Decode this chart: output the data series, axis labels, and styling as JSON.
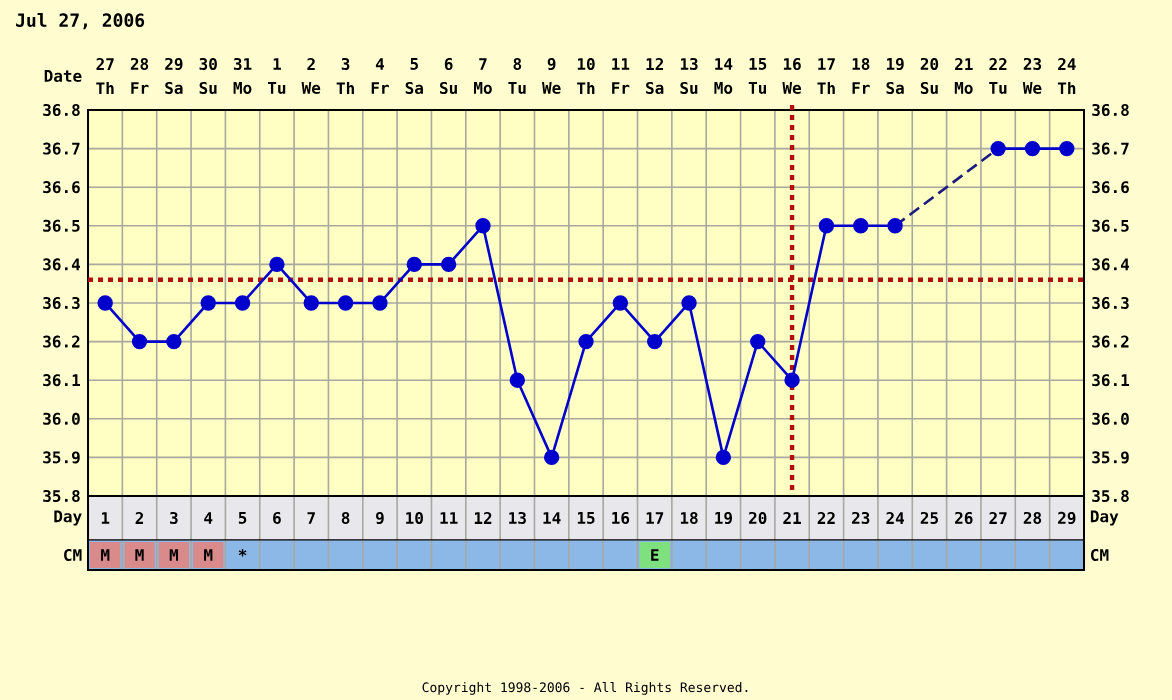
{
  "chart_data": {
    "type": "line",
    "title": "Jul 27, 2006",
    "categories": [
      "1",
      "2",
      "3",
      "4",
      "5",
      "6",
      "7",
      "8",
      "9",
      "10",
      "11",
      "12",
      "13",
      "14",
      "15",
      "16",
      "17",
      "18",
      "19",
      "20",
      "21",
      "22",
      "23",
      "24",
      "25",
      "26",
      "27",
      "28",
      "29"
    ],
    "series": [
      {
        "color": "#0000cc",
        "marker": "circle",
        "line_style": "solid",
        "values": [
          36.3,
          36.2,
          36.2,
          36.3,
          36.3,
          36.4,
          36.3,
          36.3,
          36.3,
          36.4,
          36.4,
          36.5,
          36.1,
          35.9,
          36.2,
          36.3,
          36.2,
          36.3,
          35.9,
          36.2,
          36.1,
          36.5,
          36.5,
          36.5,
          null,
          null,
          36.7,
          36.7,
          36.7
        ]
      },
      {
        "color": "#1a1a80",
        "marker": "none",
        "line_style": "dashed",
        "values": [
          null,
          null,
          null,
          null,
          null,
          null,
          null,
          null,
          null,
          null,
          null,
          null,
          null,
          null,
          null,
          null,
          null,
          null,
          null,
          null,
          null,
          null,
          null,
          36.5,
          null,
          null,
          36.7,
          null,
          null
        ]
      }
    ],
    "ylim": [
      35.8,
      36.8
    ],
    "yticks": [
      35.8,
      35.9,
      {
        "value": 36.0,
        "label": "36.0"
      },
      36.1,
      36.2,
      36.3,
      36.4,
      36.5,
      36.6,
      36.7,
      36.8
    ],
    "y2lim": [
      35.8,
      36.8
    ],
    "y2ticks": [
      35.8,
      35.9,
      {
        "value": 36.0,
        "label": "36.0"
      },
      36.1,
      36.2,
      36.3,
      36.4,
      36.5,
      36.6,
      36.7,
      36.8
    ],
    "grid": true,
    "ref_lines": [
      {
        "axis": "y",
        "value": 36.36,
        "color": "#b01010",
        "line_style": "dotted"
      },
      {
        "axis": "x",
        "value": "21",
        "color": "#b01010",
        "line_style": "dotted"
      }
    ],
    "annotations": [
      "Date",
      "Day",
      "Day",
      "CM",
      "CM",
      "Copyright 1998-2006 - All Rights Reserved.",
      "27",
      "28",
      "29",
      "30",
      "31",
      "1",
      "2",
      "3",
      "4",
      "5",
      "6",
      "7",
      "8",
      "9",
      "10",
      "11",
      "12",
      "13",
      "14",
      "15",
      "16",
      "17",
      "18",
      "19",
      "20",
      "21",
      "22",
      "23",
      "24",
      "Th",
      "Fr",
      "Sa",
      "Su",
      "Mo",
      "Tu",
      "We",
      "Th",
      "Fr",
      "Sa",
      "Su",
      "Mo",
      "Tu",
      "We",
      "Th",
      "Fr",
      "Sa",
      "Su",
      "Mo",
      "Tu",
      "We",
      "Th",
      "Fr",
      "Sa",
      "Su",
      "Mo",
      "Tu",
      "We",
      "Th",
      "M",
      "M",
      "M",
      "M",
      "*",
      "E"
    ]
  }
}
